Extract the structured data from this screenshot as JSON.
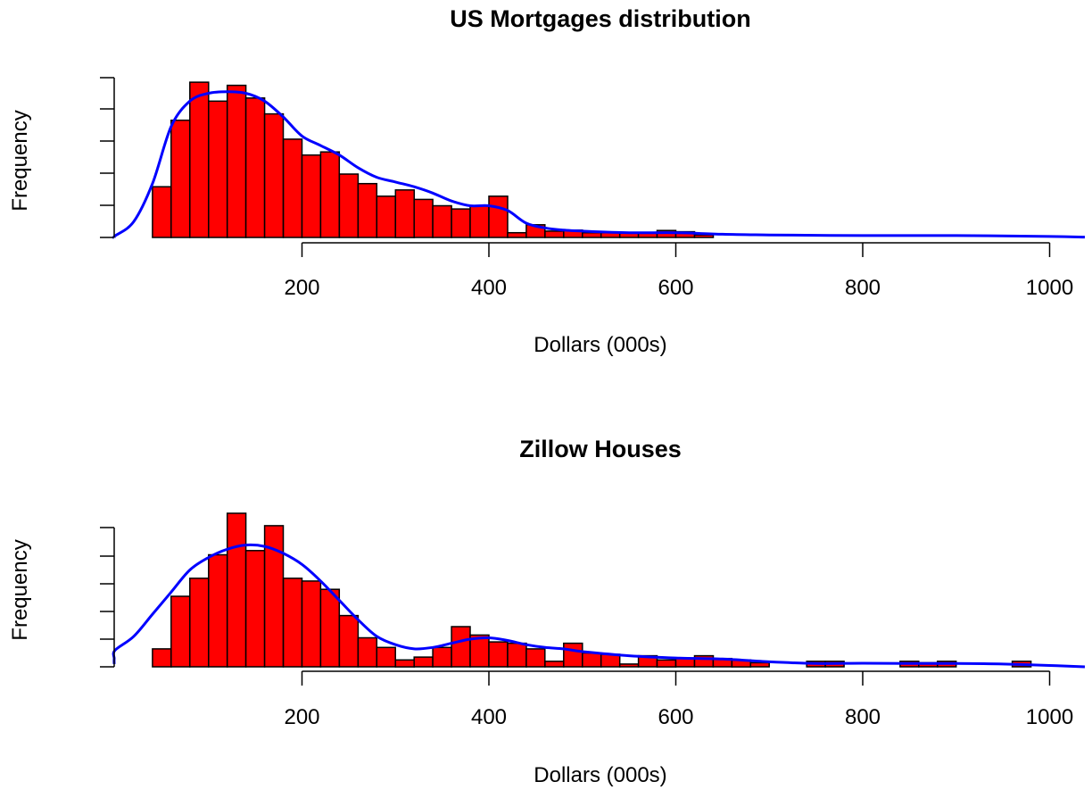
{
  "colors": {
    "bar_fill": "#ff0000",
    "bar_stroke": "#000000",
    "density_line": "#0000ff",
    "axis": "#000000"
  },
  "chart_data": [
    {
      "type": "bar",
      "title": "US Mortgages distribution",
      "xlabel": "Dollars (000s)",
      "ylabel": "Frequency",
      "xlim": [
        -50,
        1050
      ],
      "x_ticks": [
        200,
        400,
        600,
        800,
        1000
      ],
      "y_ticks_shown_without_labels": 6,
      "bin_width": 20,
      "bins": [
        {
          "x0": 40,
          "x1": 60,
          "count": 16
        },
        {
          "x0": 60,
          "x1": 80,
          "count": 37
        },
        {
          "x0": 80,
          "x1": 100,
          "count": 49
        },
        {
          "x0": 100,
          "x1": 120,
          "count": 43
        },
        {
          "x0": 120,
          "x1": 140,
          "count": 48
        },
        {
          "x0": 140,
          "x1": 160,
          "count": 44
        },
        {
          "x0": 160,
          "x1": 180,
          "count": 39
        },
        {
          "x0": 180,
          "x1": 200,
          "count": 31
        },
        {
          "x0": 200,
          "x1": 220,
          "count": 26
        },
        {
          "x0": 220,
          "x1": 240,
          "count": 27
        },
        {
          "x0": 240,
          "x1": 260,
          "count": 20
        },
        {
          "x0": 260,
          "x1": 280,
          "count": 17
        },
        {
          "x0": 280,
          "x1": 300,
          "count": 13
        },
        {
          "x0": 300,
          "x1": 320,
          "count": 15
        },
        {
          "x0": 320,
          "x1": 340,
          "count": 12
        },
        {
          "x0": 340,
          "x1": 360,
          "count": 10
        },
        {
          "x0": 360,
          "x1": 380,
          "count": 9
        },
        {
          "x0": 380,
          "x1": 400,
          "count": 10
        },
        {
          "x0": 400,
          "x1": 420,
          "count": 13
        },
        {
          "x0": 420,
          "x1": 440,
          "count": 1.5
        },
        {
          "x0": 440,
          "x1": 460,
          "count": 4
        },
        {
          "x0": 460,
          "x1": 480,
          "count": 2
        },
        {
          "x0": 480,
          "x1": 500,
          "count": 2.3
        },
        {
          "x0": 500,
          "x1": 520,
          "count": 1.5
        },
        {
          "x0": 520,
          "x1": 540,
          "count": 1.5
        },
        {
          "x0": 540,
          "x1": 560,
          "count": 1.5
        },
        {
          "x0": 560,
          "x1": 580,
          "count": 1.5
        },
        {
          "x0": 580,
          "x1": 600,
          "count": 2.2
        },
        {
          "x0": 600,
          "x1": 620,
          "count": 1.8
        },
        {
          "x0": 620,
          "x1": 640,
          "count": 0.8
        }
      ],
      "density_curve": {
        "x": [
          -50,
          0,
          20,
          40,
          60,
          80,
          100,
          120,
          140,
          160,
          180,
          200,
          220,
          240,
          260,
          280,
          300,
          320,
          340,
          360,
          380,
          400,
          420,
          440,
          460,
          480,
          500,
          550,
          600,
          650,
          700,
          800,
          900,
          1000,
          1050
        ],
        "y": [
          0,
          0.5,
          5,
          17,
          35,
          43,
          45.5,
          46,
          45.5,
          43,
          38,
          32,
          29,
          26,
          22,
          19,
          17.5,
          16,
          14,
          11.5,
          10,
          10,
          8.5,
          4.5,
          3,
          2.3,
          2,
          1.5,
          1.5,
          1,
          0.8,
          0.6,
          0.6,
          0.3,
          0.1
        ]
      }
    },
    {
      "type": "bar",
      "title": "Zillow Houses",
      "xlabel": "Dollars (000s)",
      "ylabel": "Frequency",
      "xlim": [
        -50,
        1050
      ],
      "x_ticks": [
        200,
        400,
        600,
        800,
        1000
      ],
      "y_ticks_shown_without_labels": 6,
      "bin_width": 20,
      "bins": [
        {
          "x0": 40,
          "x1": 60,
          "count": 6.5
        },
        {
          "x0": 60,
          "x1": 80,
          "count": 25.5
        },
        {
          "x0": 80,
          "x1": 100,
          "count": 32
        },
        {
          "x0": 100,
          "x1": 120,
          "count": 40.5
        },
        {
          "x0": 120,
          "x1": 140,
          "count": 55.5
        },
        {
          "x0": 140,
          "x1": 160,
          "count": 42
        },
        {
          "x0": 160,
          "x1": 180,
          "count": 51
        },
        {
          "x0": 180,
          "x1": 200,
          "count": 32
        },
        {
          "x0": 200,
          "x1": 220,
          "count": 31
        },
        {
          "x0": 220,
          "x1": 240,
          "count": 28
        },
        {
          "x0": 240,
          "x1": 260,
          "count": 18.5
        },
        {
          "x0": 260,
          "x1": 280,
          "count": 10.5
        },
        {
          "x0": 280,
          "x1": 300,
          "count": 7
        },
        {
          "x0": 300,
          "x1": 320,
          "count": 2.5
        },
        {
          "x0": 320,
          "x1": 340,
          "count": 3.5
        },
        {
          "x0": 340,
          "x1": 360,
          "count": 7
        },
        {
          "x0": 360,
          "x1": 380,
          "count": 14.5
        },
        {
          "x0": 380,
          "x1": 400,
          "count": 11.5
        },
        {
          "x0": 400,
          "x1": 420,
          "count": 9
        },
        {
          "x0": 420,
          "x1": 440,
          "count": 8.5
        },
        {
          "x0": 440,
          "x1": 460,
          "count": 6.5
        },
        {
          "x0": 460,
          "x1": 480,
          "count": 2
        },
        {
          "x0": 480,
          "x1": 500,
          "count": 8.5
        },
        {
          "x0": 500,
          "x1": 520,
          "count": 5
        },
        {
          "x0": 520,
          "x1": 540,
          "count": 4.5
        },
        {
          "x0": 540,
          "x1": 560,
          "count": 1
        },
        {
          "x0": 560,
          "x1": 580,
          "count": 4
        },
        {
          "x0": 580,
          "x1": 600,
          "count": 2.5
        },
        {
          "x0": 600,
          "x1": 620,
          "count": 3
        },
        {
          "x0": 620,
          "x1": 640,
          "count": 4
        },
        {
          "x0": 640,
          "x1": 660,
          "count": 3
        },
        {
          "x0": 660,
          "x1": 680,
          "count": 2.5
        },
        {
          "x0": 680,
          "x1": 700,
          "count": 1.5
        },
        {
          "x0": 740,
          "x1": 760,
          "count": 2
        },
        {
          "x0": 760,
          "x1": 780,
          "count": 2
        },
        {
          "x0": 840,
          "x1": 860,
          "count": 2
        },
        {
          "x0": 860,
          "x1": 880,
          "count": 1.5
        },
        {
          "x0": 880,
          "x1": 900,
          "count": 2
        },
        {
          "x0": 960,
          "x1": 980,
          "count": 2
        }
      ],
      "density_curve": {
        "x": [
          -50,
          -20,
          0,
          20,
          40,
          60,
          80,
          100,
          120,
          140,
          160,
          180,
          200,
          220,
          240,
          260,
          280,
          300,
          320,
          340,
          360,
          380,
          400,
          420,
          440,
          460,
          480,
          500,
          550,
          600,
          650,
          700,
          750,
          800,
          850,
          900,
          950,
          1000,
          1050
        ],
        "y": [
          1,
          3,
          6,
          11,
          19,
          27,
          35,
          39.5,
          42.5,
          44,
          43.5,
          41,
          37,
          31,
          24,
          17,
          11,
          8,
          6.5,
          7,
          8.5,
          10,
          10.5,
          9.5,
          8,
          7,
          6.5,
          5.5,
          4,
          3.2,
          2.8,
          1.8,
          1.2,
          1.3,
          1.2,
          1.2,
          1.0,
          0.5,
          0
        ]
      }
    }
  ]
}
